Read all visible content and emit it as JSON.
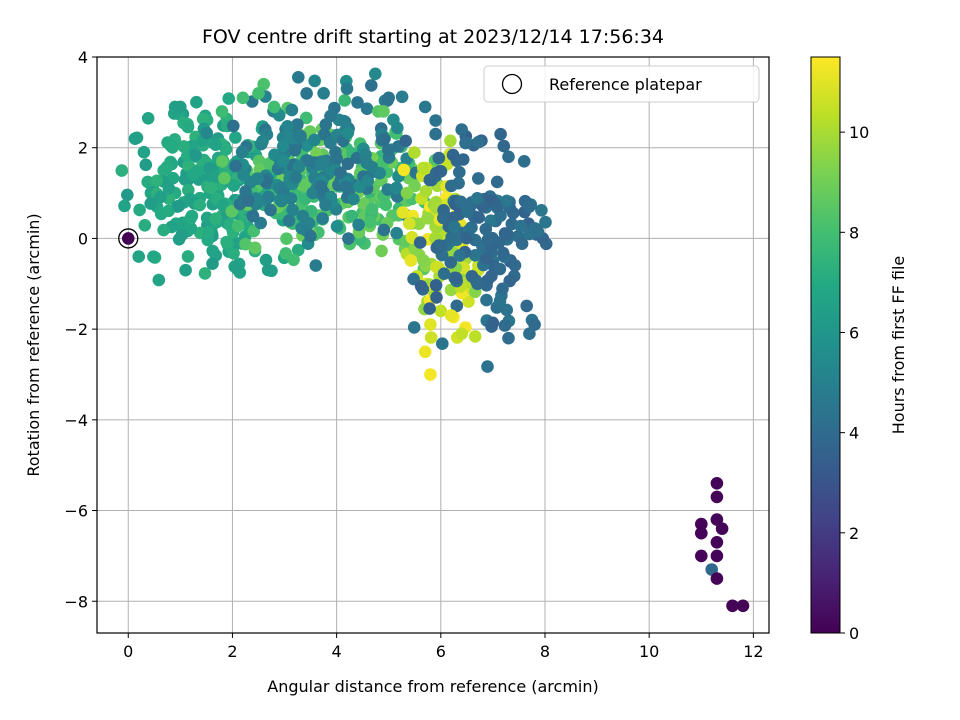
{
  "chart_data": {
    "type": "scatter",
    "title": "FOV centre drift starting at 2023/12/14 17:56:34",
    "xlabel": "Angular distance from reference (arcmin)",
    "ylabel": "Rotation from reference (arcmin)",
    "xlim": [
      -0.6,
      12.3
    ],
    "ylim": [
      -8.7,
      4.0
    ],
    "xticks": [
      0,
      2,
      4,
      6,
      8,
      10,
      12
    ],
    "yticks": [
      -8,
      -6,
      -4,
      -2,
      0,
      2,
      4
    ],
    "grid": true,
    "legend": {
      "placement": "top-right",
      "entries": [
        "Reference platepar"
      ]
    },
    "colorbar": {
      "label": "Hours from first FF file",
      "colormap": "viridis",
      "range": [
        0,
        11.5
      ],
      "ticks": [
        0,
        2,
        4,
        6,
        8,
        10
      ]
    },
    "reference_point": {
      "x": 0,
      "y": 0
    },
    "clusters": [
      {
        "hours": [
          6.2,
          7.4
        ],
        "x_range": [
          0.2,
          3.2
        ],
        "y_range": [
          -0.7,
          2.9
        ],
        "count": 240
      },
      {
        "hours": [
          7.5,
          9.2
        ],
        "x_range": [
          1.5,
          5.8
        ],
        "y_range": [
          -0.5,
          2.8
        ],
        "count": 200
      },
      {
        "hours": [
          4.2,
          5.6
        ],
        "x_range": [
          1.8,
          5.5
        ],
        "y_range": [
          0.0,
          3.3
        ],
        "count": 180
      },
      {
        "hours": [
          9.3,
          11.5
        ],
        "x_range": [
          5.2,
          6.8
        ],
        "y_range": [
          -1.9,
          1.9
        ],
        "count": 110
      },
      {
        "hours": [
          3.6,
          4.6
        ],
        "x_range": [
          5.5,
          7.9
        ],
        "y_range": [
          -2.3,
          2.5
        ],
        "count": 150
      }
    ],
    "points": [
      {
        "x": 0.9,
        "y": 2.9,
        "h": 6.5
      },
      {
        "x": 1.0,
        "y": 2.9,
        "h": 6.4
      },
      {
        "x": 0.3,
        "y": 1.9,
        "h": 6.6
      },
      {
        "x": 0.2,
        "y": -0.4,
        "h": 6.7
      },
      {
        "x": 1.1,
        "y": -0.7,
        "h": 6.5
      },
      {
        "x": 1.8,
        "y": 2.8,
        "h": 7.8
      },
      {
        "x": 2.2,
        "y": 3.1,
        "h": 7.9
      },
      {
        "x": 2.6,
        "y": 3.4,
        "h": 8.2
      },
      {
        "x": 2.5,
        "y": 3.2,
        "h": 8.0
      },
      {
        "x": 2.8,
        "y": 2.9,
        "h": 7.9
      },
      {
        "x": 4.2,
        "y": 3.3,
        "h": 4.6
      },
      {
        "x": 4.4,
        "y": 3.0,
        "h": 4.5
      },
      {
        "x": 5.0,
        "y": 3.1,
        "h": 4.4
      },
      {
        "x": 4.8,
        "y": 2.8,
        "h": 8.4
      },
      {
        "x": 4.9,
        "y": 2.8,
        "h": 8.6
      },
      {
        "x": 5.7,
        "y": 2.9,
        "h": 4.6
      },
      {
        "x": 5.9,
        "y": 2.6,
        "h": 4.4
      },
      {
        "x": 5.9,
        "y": 2.3,
        "h": 4.3
      },
      {
        "x": 6.4,
        "y": 2.4,
        "h": 4.2
      },
      {
        "x": 7.3,
        "y": 1.8,
        "h": 4.1
      },
      {
        "x": 7.6,
        "y": 1.7,
        "h": 4.2
      },
      {
        "x": 7.7,
        "y": 0.7,
        "h": 4.1
      },
      {
        "x": 3.6,
        "y": -0.6,
        "h": 4.8
      },
      {
        "x": 6.4,
        "y": -2.1,
        "h": 10.4
      },
      {
        "x": 5.7,
        "y": -2.5,
        "h": 11.2
      },
      {
        "x": 5.8,
        "y": -3.0,
        "h": 11.3
      },
      {
        "x": 5.8,
        "y": -1.9,
        "h": 11.0
      },
      {
        "x": 6.2,
        "y": -1.7,
        "h": 11.1
      },
      {
        "x": 7.3,
        "y": -2.2,
        "h": 4.1
      },
      {
        "x": 7.8,
        "y": -1.9,
        "h": 4.0
      },
      {
        "x": 7.7,
        "y": -2.1,
        "h": 4.2
      },
      {
        "x": 11.3,
        "y": -5.4,
        "h": 0.1
      },
      {
        "x": 11.3,
        "y": -5.7,
        "h": 0.1
      },
      {
        "x": 11.0,
        "y": -6.3,
        "h": 0.1
      },
      {
        "x": 11.3,
        "y": -6.2,
        "h": 0.1
      },
      {
        "x": 11.4,
        "y": -6.4,
        "h": 0.1
      },
      {
        "x": 11.0,
        "y": -6.5,
        "h": 0.1
      },
      {
        "x": 11.3,
        "y": -6.7,
        "h": 0.1
      },
      {
        "x": 11.0,
        "y": -7.0,
        "h": 0.1
      },
      {
        "x": 11.3,
        "y": -7.0,
        "h": 0.1
      },
      {
        "x": 11.2,
        "y": -7.3,
        "h": 3.9
      },
      {
        "x": 11.3,
        "y": -7.5,
        "h": 0.1
      },
      {
        "x": 11.6,
        "y": -8.1,
        "h": 0.1
      },
      {
        "x": 11.8,
        "y": -8.1,
        "h": 0.1
      }
    ]
  }
}
